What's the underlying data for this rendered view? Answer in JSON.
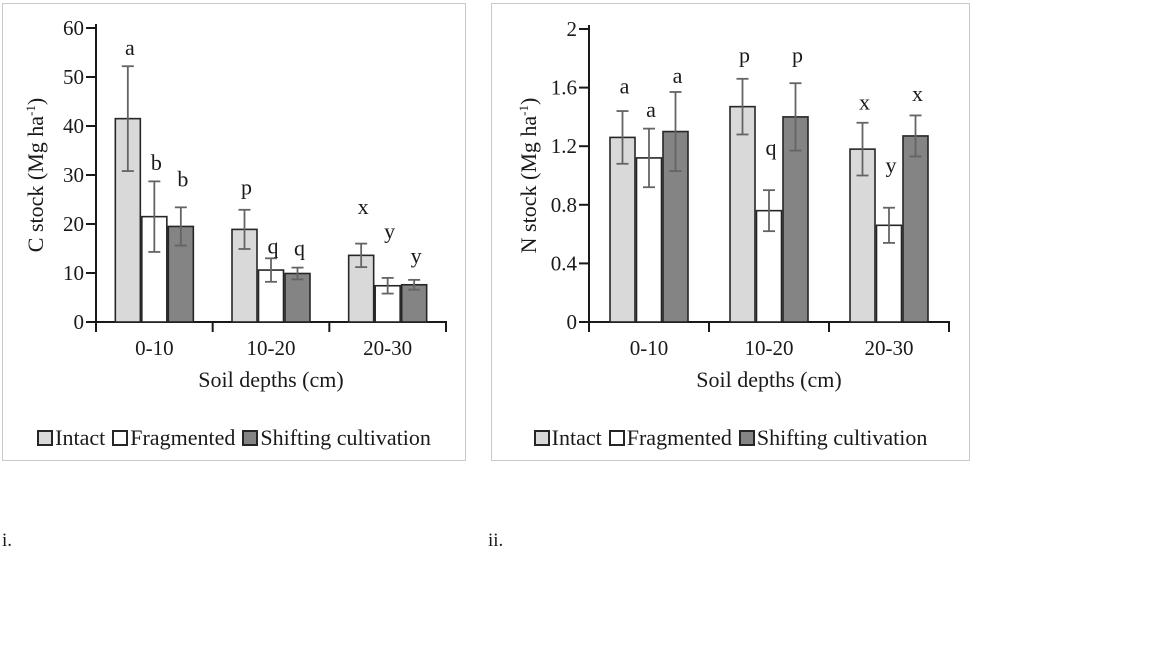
{
  "figure_labels": [
    "i.",
    "ii."
  ],
  "colors": {
    "intact": "#d9d9d9",
    "fragmented": "#ffffff",
    "shifting_cultivation": "#848484",
    "bar_border": "#262626",
    "error_bar": "#646464",
    "axis": "#1a1a1a",
    "panel_border": "#c9c9c9",
    "background": "#ffffff"
  },
  "chart_data": [
    {
      "id": "c-stock",
      "type": "bar",
      "title": "",
      "xlabel": "Soil depths (cm)",
      "ylabel": "C stock (Mg ha-1)",
      "ylabel_parts": {
        "base": "C stock (Mg ha",
        "sup": "-1",
        "end": ")"
      },
      "categories": [
        "0-10",
        "10-20",
        "20-30"
      ],
      "ylim": [
        0,
        60
      ],
      "yticks": [
        0,
        10,
        20,
        30,
        40,
        50,
        60
      ],
      "grid": false,
      "legend_position": "bottom",
      "error_bars": true,
      "series": [
        {
          "name": "Intact",
          "color": "#d9d9d9",
          "values": [
            41.5,
            18.9,
            13.6
          ],
          "errors": [
            10.7,
            4.0,
            2.4
          ],
          "letters": [
            "a",
            "p",
            "x"
          ],
          "letters_y": [
            54.5,
            26.0,
            22.0
          ]
        },
        {
          "name": "Fragmented",
          "color": "#ffffff",
          "values": [
            21.5,
            10.6,
            7.4
          ],
          "errors": [
            7.2,
            2.4,
            1.6
          ],
          "letters": [
            "b",
            "q",
            "y"
          ],
          "letters_y": [
            31.0,
            14.0,
            17.0
          ]
        },
        {
          "name": "Shifting cultivation",
          "color": "#848484",
          "values": [
            19.5,
            9.9,
            7.6
          ],
          "errors": [
            3.9,
            1.2,
            1.0
          ],
          "letters": [
            "b",
            "q",
            "y"
          ],
          "letters_y": [
            27.7,
            13.6,
            12.0
          ]
        }
      ]
    },
    {
      "id": "n-stock",
      "type": "bar",
      "title": "",
      "xlabel": "Soil depths (cm)",
      "ylabel": "N stock (Mg ha-1)",
      "ylabel_parts": {
        "base": "N stock (Mg ha",
        "sup": "-1",
        "end": ")"
      },
      "categories": [
        "0-10",
        "10-20",
        "20-30"
      ],
      "ylim": [
        0,
        2
      ],
      "yticks": [
        0,
        0.4,
        0.8,
        1.2,
        1.6,
        2
      ],
      "grid": false,
      "legend_position": "bottom",
      "error_bars": true,
      "series": [
        {
          "name": "Intact",
          "color": "#d9d9d9",
          "values": [
            1.26,
            1.47,
            1.18
          ],
          "errors": [
            0.18,
            0.19,
            0.18
          ],
          "letters": [
            "a",
            "p",
            "x"
          ],
          "letters_y": [
            1.56,
            1.77,
            1.45
          ]
        },
        {
          "name": "Fragmented",
          "color": "#ffffff",
          "values": [
            1.12,
            0.76,
            0.66
          ],
          "errors": [
            0.2,
            0.14,
            0.12
          ],
          "letters": [
            "a",
            "q",
            "y"
          ],
          "letters_y": [
            1.4,
            1.14,
            1.02
          ]
        },
        {
          "name": "Shifting cultivation",
          "color": "#848484",
          "values": [
            1.3,
            1.4,
            1.27
          ],
          "errors": [
            0.27,
            0.23,
            0.14
          ],
          "letters": [
            "a",
            "p",
            "x"
          ],
          "letters_y": [
            1.63,
            1.77,
            1.51
          ]
        }
      ]
    }
  ]
}
